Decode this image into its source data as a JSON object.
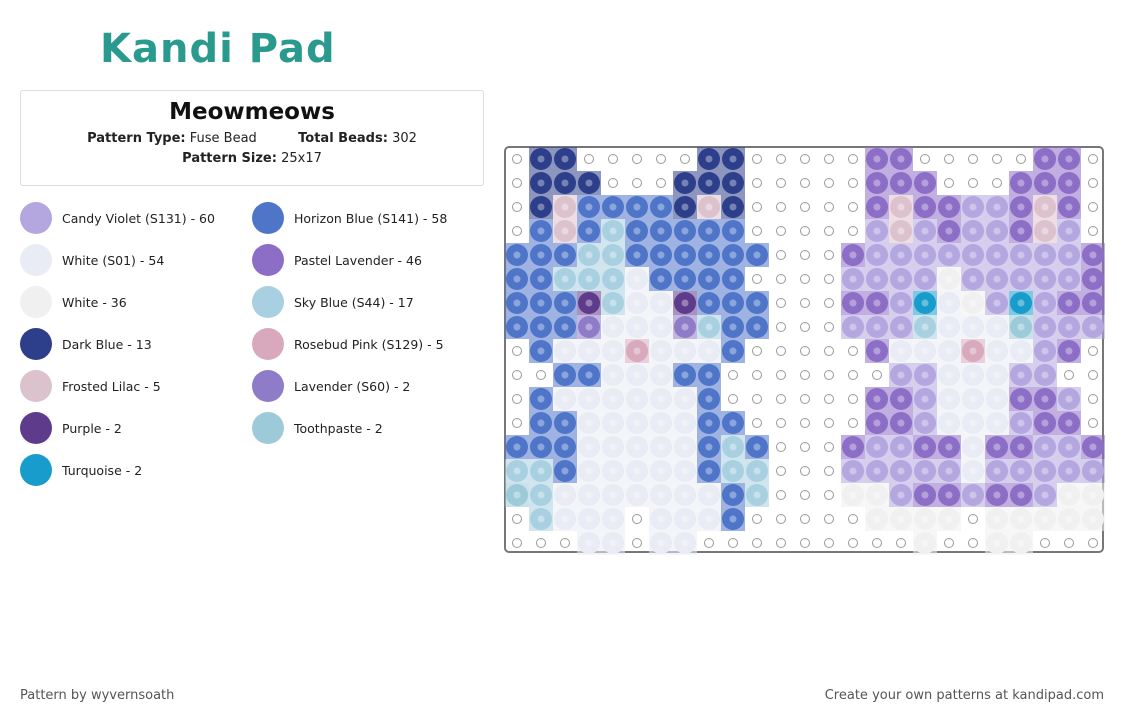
{
  "logo": "Kandi Pad",
  "pattern": {
    "title": "Meowmeows",
    "type_label": "Pattern Type:",
    "type_value": "Fuse Bead",
    "beads_label": "Total Beads:",
    "beads_value": "302",
    "size_label": "Pattern Size:",
    "size_value": "25x17"
  },
  "legend": [
    {
      "label": "Candy Violet (S131) - 60",
      "color": "#b4a6df"
    },
    {
      "label": "Horizon Blue (S141) - 58",
      "color": "#4f75c9"
    },
    {
      "label": "White (S01) - 54",
      "color": "#e9ecf4"
    },
    {
      "label": "Pastel Lavender - 46",
      "color": "#8d6ec6"
    },
    {
      "label": "White - 36",
      "color": "#f0f0f0"
    },
    {
      "label": "Sky Blue (S44) - 17",
      "color": "#a9d0e0"
    },
    {
      "label": "Dark Blue - 13",
      "color": "#2d3f8a"
    },
    {
      "label": "Rosebud Pink (S129) - 5",
      "color": "#d8a9bd"
    },
    {
      "label": "Frosted Lilac - 5",
      "color": "#dcc2cc"
    },
    {
      "label": "Lavender (S60) - 2",
      "color": "#8f7cc8"
    },
    {
      "label": "Purple - 2",
      "color": "#5e3b8b"
    },
    {
      "label": "Toothpaste - 2",
      "color": "#9ccad8"
    },
    {
      "label": "Turquoise - 2",
      "color": "#189ccc"
    }
  ],
  "footer": {
    "left": "Pattern by wyvernsoath",
    "right": "Create your own patterns at kandipad.com"
  }
}
